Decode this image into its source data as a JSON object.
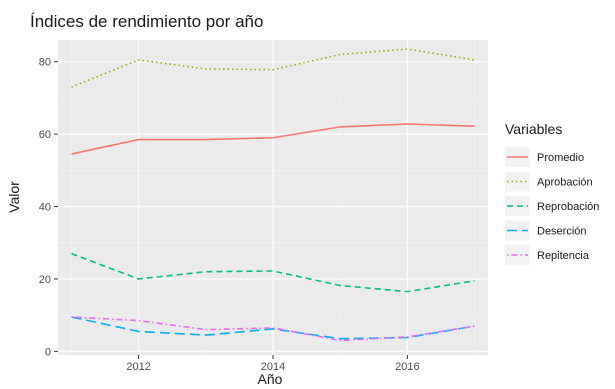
{
  "chart_data": {
    "type": "line",
    "title": "Índices de rendimiento por año",
    "xlabel": "Año",
    "ylabel": "Valor",
    "x": [
      2011,
      2012,
      2013,
      2014,
      2015,
      2016,
      2017
    ],
    "xlim": [
      2010.8,
      2017.2
    ],
    "ylim": [
      -1,
      86
    ],
    "xticks": [
      2012,
      2014,
      2016
    ],
    "yticks": [
      0,
      20,
      40,
      60,
      80
    ],
    "grid": true,
    "legend": {
      "title": "Variables",
      "position": "right"
    },
    "series": [
      {
        "name": "Promedio",
        "color": "#F8766D",
        "dash": "solid",
        "values": [
          54.5,
          58.5,
          58.5,
          59.0,
          62.0,
          62.8,
          62.2
        ]
      },
      {
        "name": "Aprobación",
        "color": "#A3A500",
        "dash": "dotted",
        "values": [
          73.0,
          80.5,
          78.0,
          77.8,
          82.0,
          83.5,
          80.5
        ]
      },
      {
        "name": "Reprobación",
        "color": "#00BF7D",
        "dash": "dashed",
        "values": [
          27.0,
          20.0,
          22.0,
          22.2,
          18.2,
          16.5,
          19.5
        ]
      },
      {
        "name": "Deserción",
        "color": "#00B0F6",
        "dash": "longdash",
        "values": [
          9.5,
          5.5,
          4.5,
          6.2,
          3.5,
          3.8,
          7.0
        ]
      },
      {
        "name": "Repitencia",
        "color": "#E76BF3",
        "dash": "dotdash",
        "values": [
          9.5,
          8.5,
          6.0,
          6.5,
          3.0,
          4.0,
          7.0
        ]
      }
    ]
  }
}
